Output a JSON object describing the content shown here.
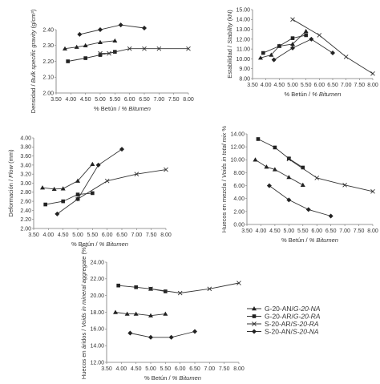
{
  "chart_data": [
    {
      "type": "line",
      "xlabel": "",
      "ylabel_parts": [
        "Densidad / ",
        "Bulk specific gravity",
        " (g/cm³)"
      ],
      "xlim": [
        3.5,
        8.0
      ],
      "ylim": [
        2.0,
        2.4
      ],
      "xticks": [
        "3.50",
        "4.00",
        "4.50",
        "5.00",
        "5.50",
        "6.00",
        "6.50",
        "7.00",
        "7.50",
        "8.00"
      ],
      "yticks": [
        "2.00",
        "2.10",
        "2.20",
        "2.30",
        "2.40"
      ],
      "series": [
        {
          "name": "G-20-AN/G-20-NA",
          "marker": "triangle",
          "x": [
            3.8,
            4.2,
            4.5,
            5.0,
            5.5
          ],
          "y": [
            2.28,
            2.29,
            2.3,
            2.32,
            2.33
          ]
        },
        {
          "name": "G-20-AR/G-20-RA",
          "marker": "square",
          "x": [
            3.9,
            4.5,
            5.0,
            5.5
          ],
          "y": [
            2.2,
            2.22,
            2.24,
            2.26
          ]
        },
        {
          "name": "S-20-AR/S-20-RA",
          "marker": "x",
          "x": [
            5.0,
            5.3,
            6.0,
            6.5,
            7.0,
            8.0
          ],
          "y": [
            2.25,
            2.25,
            2.28,
            2.28,
            2.28,
            2.28
          ]
        },
        {
          "name": "S-20-AN/S-20-NA",
          "marker": "diamond",
          "x": [
            4.3,
            5.0,
            5.7,
            6.5
          ],
          "y": [
            2.37,
            2.4,
            2.43,
            2.41
          ]
        }
      ]
    },
    {
      "type": "line",
      "xlabel": "",
      "ylabel_parts": [
        "Estabilidad / ",
        "Stability",
        " (kN)"
      ],
      "xlim": [
        3.5,
        8.0
      ],
      "ylim": [
        8.0,
        15.0
      ],
      "xticks": [
        "3.50",
        "4.00",
        "4.50",
        "5.00",
        "5.50",
        "6.00",
        "6.50",
        "7.00",
        "7.50",
        "8.00"
      ],
      "yticks": [
        "8.00",
        "9.00",
        "10.00",
        "11.00",
        "12.00",
        "13.00",
        "14.00",
        "15.00"
      ],
      "series": [
        {
          "name": "G-20-AN/G-20-NA",
          "marker": "triangle",
          "x": [
            3.8,
            4.2,
            4.5,
            5.0,
            5.5
          ],
          "y": [
            10.1,
            10.4,
            11.3,
            11.5,
            12.8
          ]
        },
        {
          "name": "G-20-AR/G-20-RA",
          "marker": "square",
          "x": [
            3.9,
            4.5,
            5.0,
            5.5
          ],
          "y": [
            10.6,
            11.3,
            12.1,
            12.4
          ]
        },
        {
          "name": "S-20-AR/S-20-RA",
          "marker": "x",
          "x": [
            5.0,
            6.0,
            7.0,
            8.0
          ],
          "y": [
            14.0,
            12.4,
            10.2,
            8.5
          ]
        },
        {
          "name": "S-20-AN/S-20-NA",
          "marker": "diamond",
          "x": [
            4.3,
            5.0,
            5.7,
            6.5
          ],
          "y": [
            9.9,
            11.1,
            12.0,
            10.6
          ]
        }
      ]
    },
    {
      "type": "line",
      "xlabel": "",
      "ylabel_parts": [
        "Deformación / ",
        "Flow",
        " (mm)"
      ],
      "xlim": [
        3.5,
        8.0
      ],
      "ylim": [
        2.0,
        4.0
      ],
      "xticks": [
        "3.50",
        "4.00",
        "4.50",
        "5.00",
        "5.50",
        "6.00",
        "6.50",
        "7.00",
        "7.50",
        "8.00"
      ],
      "yticks": [
        "2.00",
        "2.20",
        "2.40",
        "2.60",
        "2.80",
        "3.00",
        "3.20",
        "3.40",
        "3.60",
        "3.80",
        "4.00"
      ],
      "series": [
        {
          "name": "G-20-AN/G-20-NA",
          "marker": "triangle",
          "x": [
            3.8,
            4.2,
            4.5,
            5.0,
            5.5
          ],
          "y": [
            2.9,
            2.87,
            2.88,
            3.05,
            3.42
          ]
        },
        {
          "name": "G-20-AR/G-20-RA",
          "marker": "square",
          "x": [
            3.9,
            4.5,
            5.0,
            5.5
          ],
          "y": [
            2.53,
            2.6,
            2.75,
            2.78
          ]
        },
        {
          "name": "S-20-AR/S-20-RA",
          "marker": "x",
          "x": [
            5.0,
            6.0,
            7.0,
            8.0
          ],
          "y": [
            2.65,
            3.05,
            3.2,
            3.3
          ]
        },
        {
          "name": "S-20-AN/S-20-NA",
          "marker": "diamond",
          "x": [
            4.3,
            5.0,
            5.7,
            6.5
          ],
          "y": [
            2.32,
            2.65,
            3.4,
            3.75
          ]
        }
      ]
    },
    {
      "type": "line",
      "xlabel": "",
      "ylabel_parts": [
        "Huecos en mezcla / ",
        "Voids in total mix",
        " %"
      ],
      "xlim": [
        3.5,
        8.0
      ],
      "ylim": [
        0.0,
        14.0
      ],
      "xticks": [
        "3.50",
        "4.00",
        "4.50",
        "5.00",
        "5.50",
        "6.00",
        "6.50",
        "7.00",
        "7.50",
        "8.00"
      ],
      "yticks": [
        "0.00",
        "2.00",
        "4.00",
        "6.00",
        "8.00",
        "10.00",
        "12.00",
        "14.00"
      ],
      "series": [
        {
          "name": "G-20-AN/G-20-NA",
          "marker": "triangle",
          "x": [
            3.8,
            4.2,
            4.5,
            5.0,
            5.5
          ],
          "y": [
            10.0,
            8.9,
            8.5,
            7.3,
            6.1
          ]
        },
        {
          "name": "G-20-AR/G-20-RA",
          "marker": "square",
          "x": [
            3.9,
            4.5,
            5.0,
            5.5
          ],
          "y": [
            13.2,
            11.9,
            10.2,
            8.8
          ]
        },
        {
          "name": "S-20-AR/S-20-RA",
          "marker": "x",
          "x": [
            5.0,
            6.0,
            7.0,
            8.0
          ],
          "y": [
            10.1,
            7.2,
            6.1,
            5.1
          ]
        },
        {
          "name": "S-20-AN/S-20-NA",
          "marker": "diamond",
          "x": [
            4.3,
            5.0,
            5.7,
            6.5
          ],
          "y": [
            6.0,
            3.8,
            2.3,
            1.3
          ]
        }
      ]
    },
    {
      "type": "line",
      "xlabel": "",
      "ylabel_parts": [
        "Huecos en áridos / ",
        "Voids in mineral aggregate",
        " (%)"
      ],
      "xlim": [
        3.5,
        8.0
      ],
      "ylim": [
        12.0,
        24.0
      ],
      "xticks": [
        "3.50",
        "4.00",
        "4.50",
        "5.00",
        "5.50",
        "6.00",
        "6.50",
        "7.00",
        "7.50",
        "8.00"
      ],
      "yticks": [
        "12.00",
        "14.00",
        "16.00",
        "18.00",
        "20.00",
        "22.00",
        "24.00"
      ],
      "series": [
        {
          "name": "G-20-AN/G-20-NA",
          "marker": "triangle",
          "x": [
            3.8,
            4.2,
            4.5,
            5.0,
            5.5
          ],
          "y": [
            18.0,
            17.8,
            17.8,
            17.6,
            17.8
          ]
        },
        {
          "name": "G-20-AR/G-20-RA",
          "marker": "square",
          "x": [
            3.9,
            4.5,
            5.0,
            5.5
          ],
          "y": [
            21.2,
            21.0,
            20.8,
            20.5
          ]
        },
        {
          "name": "S-20-AR/S-20-RA",
          "marker": "x",
          "x": [
            5.0,
            6.0,
            7.0,
            8.0
          ],
          "y": [
            20.8,
            20.3,
            20.8,
            21.5
          ]
        },
        {
          "name": "S-20-AN/S-20-NA",
          "marker": "diamond",
          "x": [
            4.3,
            5.0,
            5.7,
            6.5
          ],
          "y": [
            15.5,
            15.0,
            15.0,
            15.7
          ]
        }
      ]
    }
  ],
  "xlabel_parts": [
    "% Betún / ",
    "% Bitumen"
  ],
  "legend": {
    "placement": "right of bottom chart",
    "entries": [
      {
        "marker": "triangle",
        "plain": "G-20-AN/",
        "italic": "G-20-NA"
      },
      {
        "marker": "square",
        "plain": "G-20-AR/",
        "italic": "G-20-RA"
      },
      {
        "marker": "x",
        "plain": "S-20-AR/",
        "italic": "S-20-RA"
      },
      {
        "marker": "diamond",
        "plain": "S-20-AN/",
        "italic": "S-20-NA"
      }
    ]
  }
}
